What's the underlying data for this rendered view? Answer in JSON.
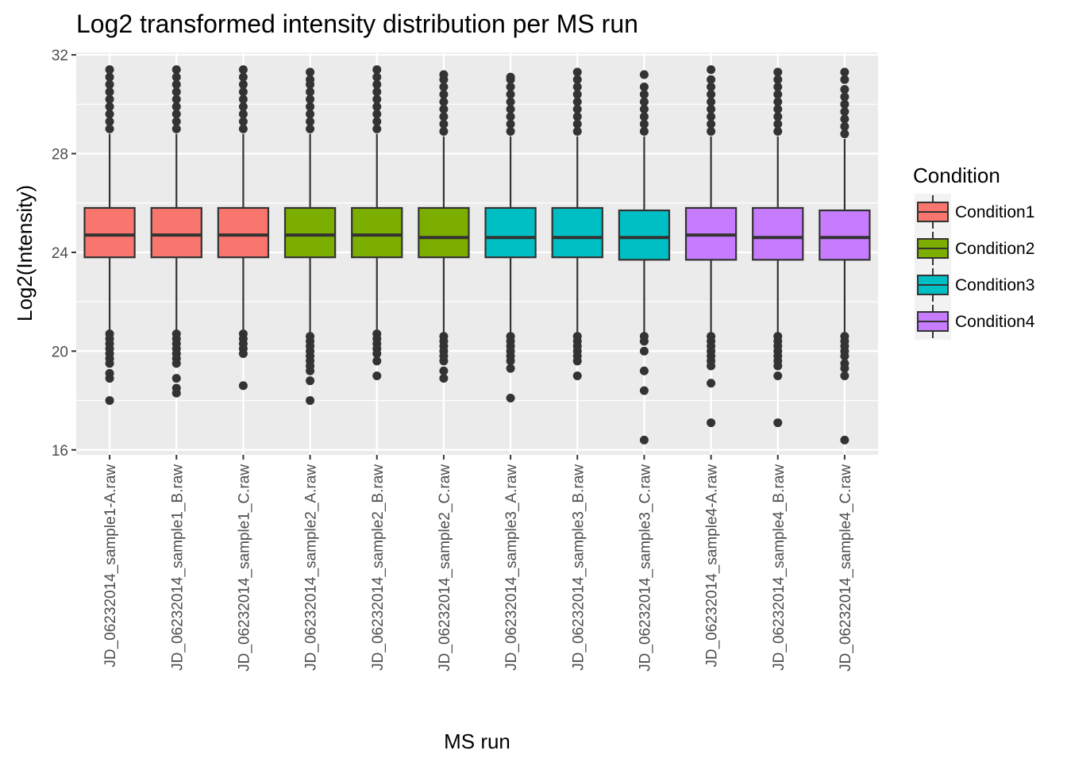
{
  "chart_data": {
    "type": "boxplot",
    "title": "Log2 transformed intensity distribution per MS run",
    "xlabel": "MS run",
    "ylabel": "Log2(Intensity)",
    "ylim": [
      15.8,
      32.1
    ],
    "yticks": [
      16,
      20,
      24,
      28,
      32
    ],
    "grid": true,
    "legend_title": "Condition",
    "legend_position": "right",
    "series": [
      {
        "name": "Condition1",
        "color": "#F8766D"
      },
      {
        "name": "Condition2",
        "color": "#7CAE00"
      },
      {
        "name": "Condition3",
        "color": "#00BFC4"
      },
      {
        "name": "Condition4",
        "color": "#C77CFF"
      }
    ],
    "categories": [
      "JD_06232014_sample1-A.raw",
      "JD_06232014_sample1_B.raw",
      "JD_06232014_sample1_C.raw",
      "JD_06232014_sample2_A.raw",
      "JD_06232014_sample2_B.raw",
      "JD_06232014_sample2_C.raw",
      "JD_06232014_sample3_A.raw",
      "JD_06232014_sample3_B.raw",
      "JD_06232014_sample3_C.raw",
      "JD_06232014_sample4-A.raw",
      "JD_06232014_sample4_B.raw",
      "JD_06232014_sample4_C.raw"
    ],
    "boxes": [
      {
        "condition": "Condition1",
        "lower_whisker": 20.8,
        "q1": 23.8,
        "median": 24.7,
        "q3": 25.8,
        "upper_whisker": 28.8,
        "outliers_low": [
          20.7,
          20.5,
          20.3,
          20.1,
          19.9,
          19.7,
          19.5,
          19.1,
          18.9,
          18.0
        ],
        "outliers_high": [
          29.0,
          29.3,
          29.6,
          29.9,
          30.2,
          30.5,
          30.8,
          31.1,
          31.4
        ]
      },
      {
        "condition": "Condition1",
        "lower_whisker": 20.8,
        "q1": 23.8,
        "median": 24.7,
        "q3": 25.8,
        "upper_whisker": 28.8,
        "outliers_low": [
          20.7,
          20.5,
          20.3,
          20.1,
          19.9,
          19.7,
          19.5,
          18.9,
          18.5,
          18.3
        ],
        "outliers_high": [
          29.0,
          29.3,
          29.6,
          29.9,
          30.2,
          30.5,
          30.8,
          31.1,
          31.4
        ]
      },
      {
        "condition": "Condition1",
        "lower_whisker": 20.8,
        "q1": 23.8,
        "median": 24.7,
        "q3": 25.8,
        "upper_whisker": 28.8,
        "outliers_low": [
          20.7,
          20.5,
          20.3,
          20.1,
          19.9,
          18.6
        ],
        "outliers_high": [
          29.0,
          29.3,
          29.6,
          29.9,
          30.2,
          30.5,
          30.8,
          31.1,
          31.4
        ]
      },
      {
        "condition": "Condition2",
        "lower_whisker": 20.7,
        "q1": 23.8,
        "median": 24.7,
        "q3": 25.8,
        "upper_whisker": 28.8,
        "outliers_low": [
          20.6,
          20.4,
          20.2,
          20.0,
          19.8,
          19.6,
          19.4,
          19.2,
          18.8,
          18.0
        ],
        "outliers_high": [
          29.0,
          29.3,
          29.6,
          29.9,
          30.2,
          30.5,
          30.8,
          31.0,
          31.3
        ]
      },
      {
        "condition": "Condition2",
        "lower_whisker": 20.8,
        "q1": 23.8,
        "median": 24.7,
        "q3": 25.8,
        "upper_whisker": 28.8,
        "outliers_low": [
          20.7,
          20.5,
          20.3,
          20.1,
          19.9,
          19.6,
          19.0
        ],
        "outliers_high": [
          29.0,
          29.3,
          29.6,
          29.9,
          30.2,
          30.5,
          30.8,
          31.1,
          31.4
        ]
      },
      {
        "condition": "Condition2",
        "lower_whisker": 20.7,
        "q1": 23.8,
        "median": 24.6,
        "q3": 25.8,
        "upper_whisker": 28.7,
        "outliers_low": [
          20.6,
          20.4,
          20.2,
          20.0,
          19.8,
          19.6,
          19.2,
          18.9
        ],
        "outliers_high": [
          28.9,
          29.2,
          29.5,
          29.8,
          30.1,
          30.4,
          30.7,
          31.0,
          31.2
        ]
      },
      {
        "condition": "Condition3",
        "lower_whisker": 20.7,
        "q1": 23.8,
        "median": 24.6,
        "q3": 25.8,
        "upper_whisker": 28.7,
        "outliers_low": [
          20.6,
          20.4,
          20.2,
          20.0,
          19.8,
          19.6,
          19.3,
          18.1
        ],
        "outliers_high": [
          28.9,
          29.2,
          29.5,
          29.8,
          30.1,
          30.4,
          30.7,
          31.0,
          31.1
        ]
      },
      {
        "condition": "Condition3",
        "lower_whisker": 20.7,
        "q1": 23.8,
        "median": 24.6,
        "q3": 25.8,
        "upper_whisker": 28.7,
        "outliers_low": [
          20.6,
          20.4,
          20.2,
          20.0,
          19.8,
          19.6,
          19.0
        ],
        "outliers_high": [
          28.9,
          29.2,
          29.5,
          29.8,
          30.1,
          30.4,
          30.7,
          31.0,
          31.3
        ]
      },
      {
        "condition": "Condition3",
        "lower_whisker": 20.7,
        "q1": 23.7,
        "median": 24.6,
        "q3": 25.7,
        "upper_whisker": 28.7,
        "outliers_low": [
          20.6,
          20.4,
          20.0,
          19.2,
          18.4,
          16.4
        ],
        "outliers_high": [
          28.9,
          29.2,
          29.5,
          29.8,
          30.1,
          30.4,
          30.7,
          31.2
        ]
      },
      {
        "condition": "Condition4",
        "lower_whisker": 20.7,
        "q1": 23.7,
        "median": 24.7,
        "q3": 25.8,
        "upper_whisker": 28.7,
        "outliers_low": [
          20.6,
          20.4,
          20.2,
          20.0,
          19.8,
          19.6,
          19.4,
          18.7,
          17.1
        ],
        "outliers_high": [
          28.9,
          29.2,
          29.5,
          29.8,
          30.1,
          30.4,
          30.7,
          31.0,
          31.4
        ]
      },
      {
        "condition": "Condition4",
        "lower_whisker": 20.7,
        "q1": 23.7,
        "median": 24.6,
        "q3": 25.8,
        "upper_whisker": 28.7,
        "outliers_low": [
          20.6,
          20.4,
          20.2,
          20.0,
          19.8,
          19.6,
          19.4,
          19.0,
          17.1
        ],
        "outliers_high": [
          28.9,
          29.2,
          29.5,
          29.8,
          30.1,
          30.4,
          30.7,
          31.0,
          31.3
        ]
      },
      {
        "condition": "Condition4",
        "lower_whisker": 20.7,
        "q1": 23.7,
        "median": 24.6,
        "q3": 25.7,
        "upper_whisker": 28.6,
        "outliers_low": [
          20.6,
          20.4,
          20.2,
          20.0,
          19.8,
          19.5,
          19.3,
          19.0,
          16.4
        ],
        "outliers_high": [
          28.8,
          29.1,
          29.4,
          29.7,
          30.0,
          30.3,
          30.6,
          31.0,
          31.3
        ]
      }
    ]
  }
}
